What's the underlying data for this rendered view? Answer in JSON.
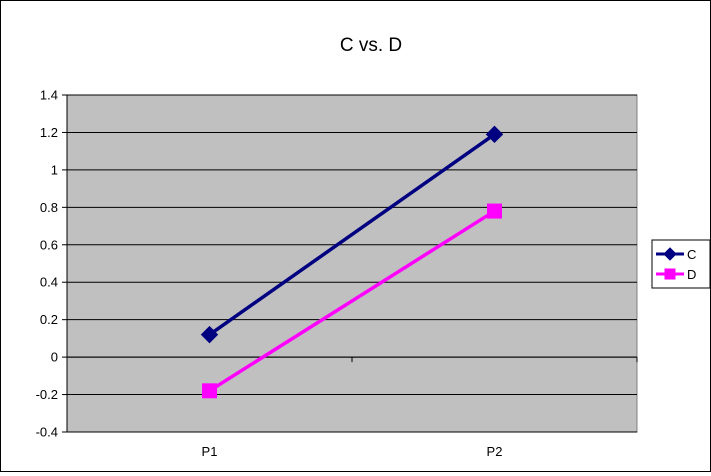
{
  "chart_data": {
    "type": "line",
    "title": "C vs. D",
    "xlabel": "",
    "ylabel": "",
    "categories": [
      "P1",
      "P2"
    ],
    "ylim": [
      -0.4,
      1.4
    ],
    "yticks": [
      -0.4,
      -0.2,
      0,
      0.2,
      0.4,
      0.6,
      0.8,
      1,
      1.2,
      1.4
    ],
    "grid": true,
    "legend_position": "right",
    "plot_background": "#c0c0c0",
    "series": [
      {
        "name": "C",
        "values": [
          0.12,
          1.19
        ],
        "color": "#000080",
        "marker": "diamond"
      },
      {
        "name": "D",
        "values": [
          -0.18,
          0.78
        ],
        "color": "#ff00ff",
        "marker": "square"
      }
    ]
  }
}
